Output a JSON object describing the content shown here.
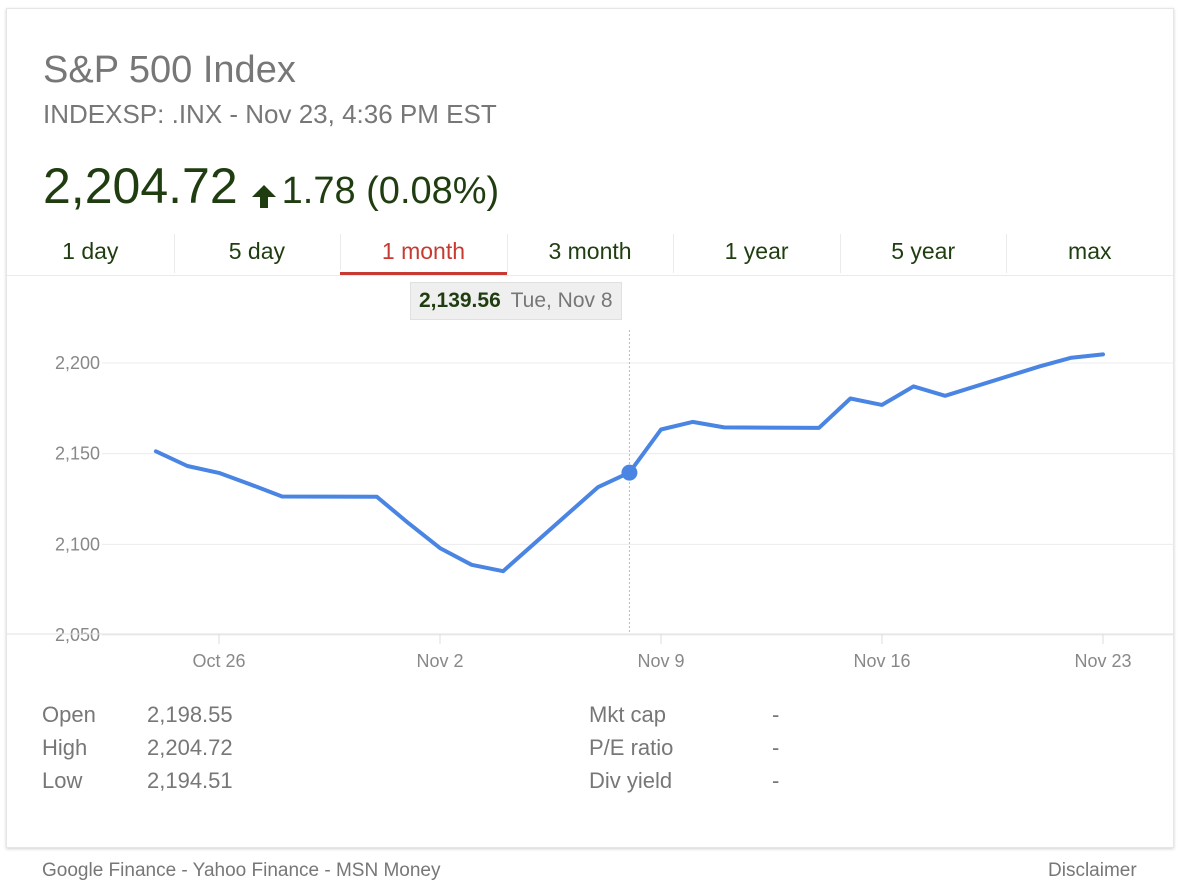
{
  "header": {
    "title": "S&P 500 Index",
    "subtitle": "INDEXSP: .INX - Nov 23, 4:36 PM EST",
    "price": "2,204.72",
    "change": "1.78 (0.08%)"
  },
  "colors": {
    "up": "#1f3d10",
    "line": "#4a85e3",
    "active_tab": "#c73a31"
  },
  "tabs": [
    {
      "label": "1 day",
      "active": false
    },
    {
      "label": "5 day",
      "active": false
    },
    {
      "label": "1 month",
      "active": true
    },
    {
      "label": "3 month",
      "active": false
    },
    {
      "label": "1 year",
      "active": false
    },
    {
      "label": "5 year",
      "active": false
    },
    {
      "label": "max",
      "active": false
    }
  ],
  "tooltip": {
    "value": "2,139.56",
    "date": "Tue, Nov 8"
  },
  "chart_data": {
    "type": "line",
    "title": "",
    "xlabel": "",
    "ylabel": "",
    "ylim": [
      2050,
      2200
    ],
    "yticks": [
      2050,
      2100,
      2150,
      2200
    ],
    "ytick_labels": [
      "2,050",
      "2,100",
      "2,150",
      "2,200"
    ],
    "xtick_labels": [
      "Oct 26",
      "Nov 2",
      "Nov 9",
      "Nov 16",
      "Nov 23"
    ],
    "xtick_dates": [
      "2016-10-26",
      "2016-11-02",
      "2016-11-09",
      "2016-11-16",
      "2016-11-23"
    ],
    "grid": true,
    "series": [
      {
        "x": [
          "2016-10-24",
          "2016-10-25",
          "2016-10-26",
          "2016-10-27",
          "2016-10-28",
          "2016-10-31",
          "2016-11-01",
          "2016-11-02",
          "2016-11-03",
          "2016-11-04",
          "2016-11-07",
          "2016-11-08",
          "2016-11-09",
          "2016-11-10",
          "2016-11-11",
          "2016-11-14",
          "2016-11-15",
          "2016-11-16",
          "2016-11-17",
          "2016-11-18",
          "2016-11-21",
          "2016-11-22",
          "2016-11-23"
        ],
        "values": [
          2151.3,
          2143.2,
          2139.4,
          2133.0,
          2126.4,
          2126.2,
          2111.7,
          2097.9,
          2088.7,
          2085.2,
          2131.5,
          2139.56,
          2163.3,
          2167.5,
          2164.5,
          2164.2,
          2180.4,
          2176.9,
          2187.1,
          2181.9,
          2198.2,
          2202.9,
          2204.72
        ]
      }
    ],
    "highlight": {
      "x": "2016-11-08",
      "value": 2139.56
    }
  },
  "stats": {
    "left": [
      {
        "label": "Open",
        "value": "2,198.55"
      },
      {
        "label": "High",
        "value": "2,204.72"
      },
      {
        "label": "Low",
        "value": "2,194.51"
      }
    ],
    "right": [
      {
        "label": "Mkt cap",
        "value": "-"
      },
      {
        "label": "P/E ratio",
        "value": "-"
      },
      {
        "label": "Div yield",
        "value": "-"
      }
    ]
  },
  "footer": {
    "links": "Google Finance - Yahoo Finance - MSN Money",
    "disclaimer": "Disclaimer"
  }
}
